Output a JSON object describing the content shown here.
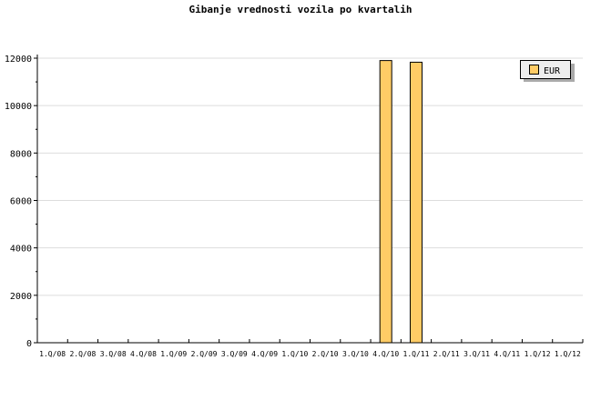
{
  "chart_data": {
    "type": "bar",
    "title": "Gibanje vrednosti vozila po kvartalih",
    "categories": [
      "1.Q/08",
      "2.Q/08",
      "3.Q/08",
      "4.Q/08",
      "1.Q/09",
      "2.Q/09",
      "3.Q/09",
      "4.Q/09",
      "1.Q/10",
      "2.Q/10",
      "3.Q/10",
      "4.Q/10",
      "1.Q/11",
      "2.Q/11",
      "3.Q/11",
      "4.Q/11",
      "1.Q/12",
      "1.Q/12"
    ],
    "series": [
      {
        "name": "EUR",
        "values": [
          0,
          0,
          0,
          0,
          0,
          0,
          0,
          0,
          0,
          0,
          0,
          11900,
          11830,
          0,
          0,
          0,
          0,
          0
        ],
        "color": "#ffcc66"
      }
    ],
    "ylim": [
      0,
      12000
    ],
    "yticks": [
      0,
      2000,
      4000,
      6000,
      8000,
      10000,
      12000
    ],
    "grid": true,
    "legend": "top-right"
  }
}
